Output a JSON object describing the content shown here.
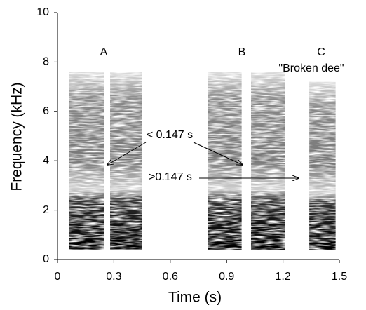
{
  "chart_data": {
    "type": "spectrogram",
    "x_label": "Time (s)",
    "y_label": "Frequency (kHz)",
    "xlim": [
      0,
      1.5
    ],
    "xticks": [
      0,
      0.3,
      0.6,
      0.9,
      1.2,
      1.5
    ],
    "ylim": [
      0,
      10
    ],
    "yticks": [
      0,
      2,
      4,
      6,
      8,
      10
    ],
    "color": "#1a1a1a",
    "notes": [
      {
        "start": 0.06,
        "end": 0.25,
        "low": 0.4,
        "high": 7.6
      },
      {
        "start": 0.28,
        "end": 0.45,
        "low": 0.4,
        "high": 7.6
      },
      {
        "start": 0.8,
        "end": 0.98,
        "low": 0.4,
        "high": 7.6
      },
      {
        "start": 1.03,
        "end": 1.21,
        "low": 0.4,
        "high": 7.6
      },
      {
        "start": 1.34,
        "end": 1.48,
        "low": 0.4,
        "high": 7.2
      }
    ],
    "annotations": [
      "A",
      "B",
      "C",
      "\"Broken dee\"",
      "< 0.147 s",
      ">0.147 s"
    ]
  }
}
